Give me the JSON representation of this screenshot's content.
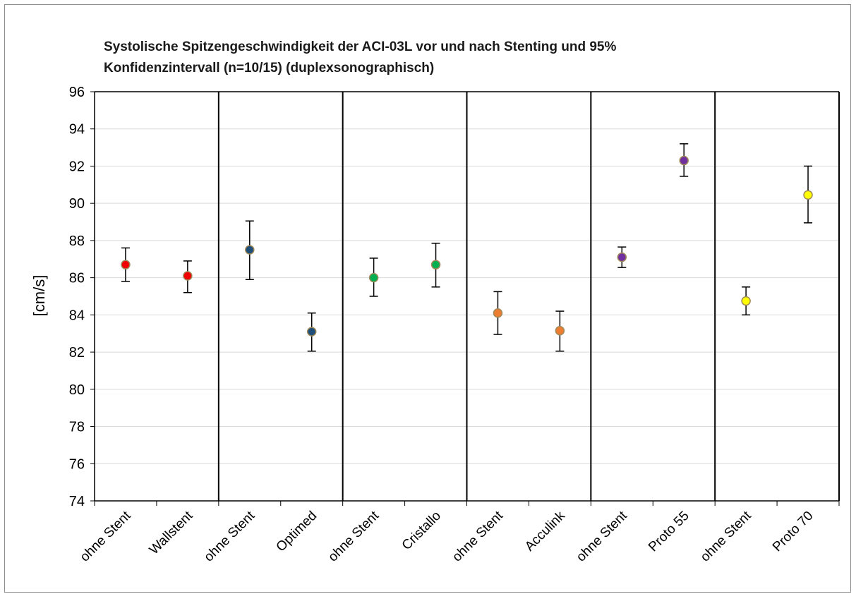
{
  "chart_data": {
    "type": "scatter",
    "title": "Systolische Spitzengeschwindigkeit der ACI-03L vor und nach Stenting und 95% Konfidenzintervall (n=10/15) (duplexsonographisch)",
    "title_lines": [
      "Systolische Spitzengeschwindigkeit der ACI-03L vor und nach Stenting und 95%",
      "Konfidenzintervall (n=10/15) (duplexsonographisch)"
    ],
    "xlabel": "",
    "ylabel": "[cm/s]",
    "ylim": [
      74,
      96
    ],
    "yticks": [
      74,
      76,
      78,
      80,
      82,
      84,
      86,
      88,
      90,
      92,
      94,
      96
    ],
    "grid": true,
    "categories": [
      "ohne Stent",
      "Wallstent",
      "ohne Stent",
      "Optimed",
      "ohne Stent",
      "Cristallo",
      "ohne Stent",
      "Acculink",
      "ohne Stent",
      "Proto 55",
      "ohne Stent",
      "Proto 70"
    ],
    "points": [
      {
        "category": "ohne Stent",
        "value": 86.7,
        "ci_low": 85.8,
        "ci_high": 87.6,
        "color": "#f00000"
      },
      {
        "category": "Wallstent",
        "value": 86.1,
        "ci_low": 85.2,
        "ci_high": 86.9,
        "color": "#f00000"
      },
      {
        "category": "ohne Stent",
        "value": 87.5,
        "ci_low": 85.9,
        "ci_high": 89.05,
        "color": "#1f4e79"
      },
      {
        "category": "Optimed",
        "value": 83.1,
        "ci_low": 82.05,
        "ci_high": 84.1,
        "color": "#1f4e79"
      },
      {
        "category": "ohne Stent",
        "value": 86.0,
        "ci_low": 85.0,
        "ci_high": 87.05,
        "color": "#00b050"
      },
      {
        "category": "Cristallo",
        "value": 86.7,
        "ci_low": 85.5,
        "ci_high": 87.85,
        "color": "#00b050"
      },
      {
        "category": "ohne Stent",
        "value": 84.1,
        "ci_low": 82.95,
        "ci_high": 85.25,
        "color": "#ed7d31"
      },
      {
        "category": "Acculink",
        "value": 83.15,
        "ci_low": 82.05,
        "ci_high": 84.2,
        "color": "#ed7d31"
      },
      {
        "category": "ohne Stent",
        "value": 87.1,
        "ci_low": 86.55,
        "ci_high": 87.65,
        "color": "#7030a0"
      },
      {
        "category": "Proto 55",
        "value": 92.3,
        "ci_low": 91.45,
        "ci_high": 93.2,
        "color": "#7030a0"
      },
      {
        "category": "ohne Stent",
        "value": 84.75,
        "ci_low": 84.0,
        "ci_high": 85.5,
        "color": "#ffff00"
      },
      {
        "category": "Proto 70",
        "value": 90.45,
        "ci_low": 88.95,
        "ci_high": 92.0,
        "color": "#ffff00"
      }
    ],
    "group_separators_after": [
      2,
      4,
      6,
      8,
      10
    ]
  }
}
